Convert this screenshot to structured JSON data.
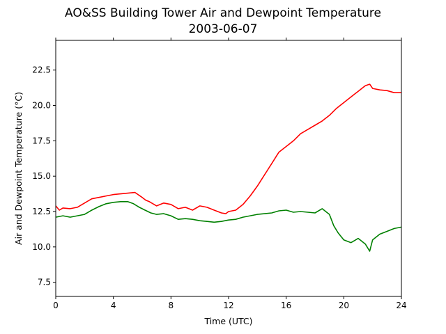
{
  "chart_data": {
    "type": "line",
    "title": "AO&SS Building Tower Air and Dewpoint Temperature",
    "subtitle": "2003-06-07",
    "xlabel": "Time (UTC)",
    "ylabel": "Air and Dewpoint Temperature (°C)",
    "xlim": [
      0,
      24
    ],
    "ylim": [
      6.5,
      24.6
    ],
    "xticks": [
      0,
      4,
      8,
      12,
      16,
      20,
      24
    ],
    "yticks": [
      7.5,
      10.0,
      12.5,
      15.0,
      17.5,
      20.0,
      22.5
    ],
    "ytick_labels": [
      "7.5",
      "10.0",
      "12.5",
      "15.0",
      "17.5",
      "20.0",
      "22.5"
    ],
    "grid": false,
    "series": [
      {
        "color": "#ff0000",
        "x": [
          0,
          0.25,
          0.5,
          1,
          1.5,
          2,
          2.5,
          3,
          3.5,
          4,
          4.5,
          5,
          5.5,
          6,
          6.25,
          6.5,
          7,
          7.5,
          8,
          8.5,
          9,
          9.5,
          10,
          10.5,
          11,
          11.5,
          11.8,
          12,
          12.5,
          13,
          13.5,
          14,
          14.5,
          15,
          15.5,
          16,
          16.5,
          17,
          17.5,
          18,
          18.5,
          19,
          19.5,
          20,
          20.5,
          21,
          21.5,
          21.8,
          22,
          22.5,
          23,
          23.5,
          24
        ],
        "y": [
          12.9,
          12.6,
          12.75,
          12.7,
          12.8,
          13.1,
          13.4,
          13.5,
          13.6,
          13.7,
          13.75,
          13.8,
          13.85,
          13.5,
          13.3,
          13.2,
          12.9,
          13.1,
          13.0,
          12.7,
          12.8,
          12.6,
          12.9,
          12.8,
          12.6,
          12.4,
          12.35,
          12.5,
          12.6,
          13.0,
          13.6,
          14.3,
          15.1,
          15.9,
          16.7,
          17.1,
          17.5,
          18.0,
          18.3,
          18.6,
          18.9,
          19.3,
          19.8,
          20.2,
          20.6,
          21.0,
          21.4,
          21.5,
          21.2,
          21.1,
          21.05,
          20.9,
          20.9
        ]
      },
      {
        "color": "#008000",
        "x": [
          0,
          0.5,
          1,
          1.5,
          2,
          2.5,
          3,
          3.5,
          4,
          4.5,
          5,
          5.4,
          5.8,
          6.2,
          6.6,
          7,
          7.5,
          8,
          8.5,
          9,
          9.5,
          10,
          10.5,
          11,
          11.5,
          12,
          12.5,
          13,
          13.5,
          14,
          14.5,
          15,
          15.5,
          16,
          16.5,
          17,
          17.5,
          18,
          18.5,
          19,
          19.3,
          19.6,
          20,
          20.5,
          21,
          21.5,
          21.8,
          22,
          22.5,
          23,
          23.5,
          24
        ],
        "y": [
          12.1,
          12.2,
          12.1,
          12.2,
          12.3,
          12.6,
          12.85,
          13.05,
          13.15,
          13.2,
          13.2,
          13.05,
          12.8,
          12.6,
          12.4,
          12.3,
          12.35,
          12.2,
          11.95,
          12.0,
          11.95,
          11.85,
          11.8,
          11.75,
          11.8,
          11.9,
          11.95,
          12.1,
          12.2,
          12.3,
          12.35,
          12.4,
          12.55,
          12.6,
          12.45,
          12.5,
          12.45,
          12.4,
          12.7,
          12.3,
          11.5,
          11.0,
          10.5,
          10.3,
          10.6,
          10.2,
          9.7,
          10.5,
          10.9,
          11.1,
          11.3,
          11.4
        ]
      }
    ]
  }
}
